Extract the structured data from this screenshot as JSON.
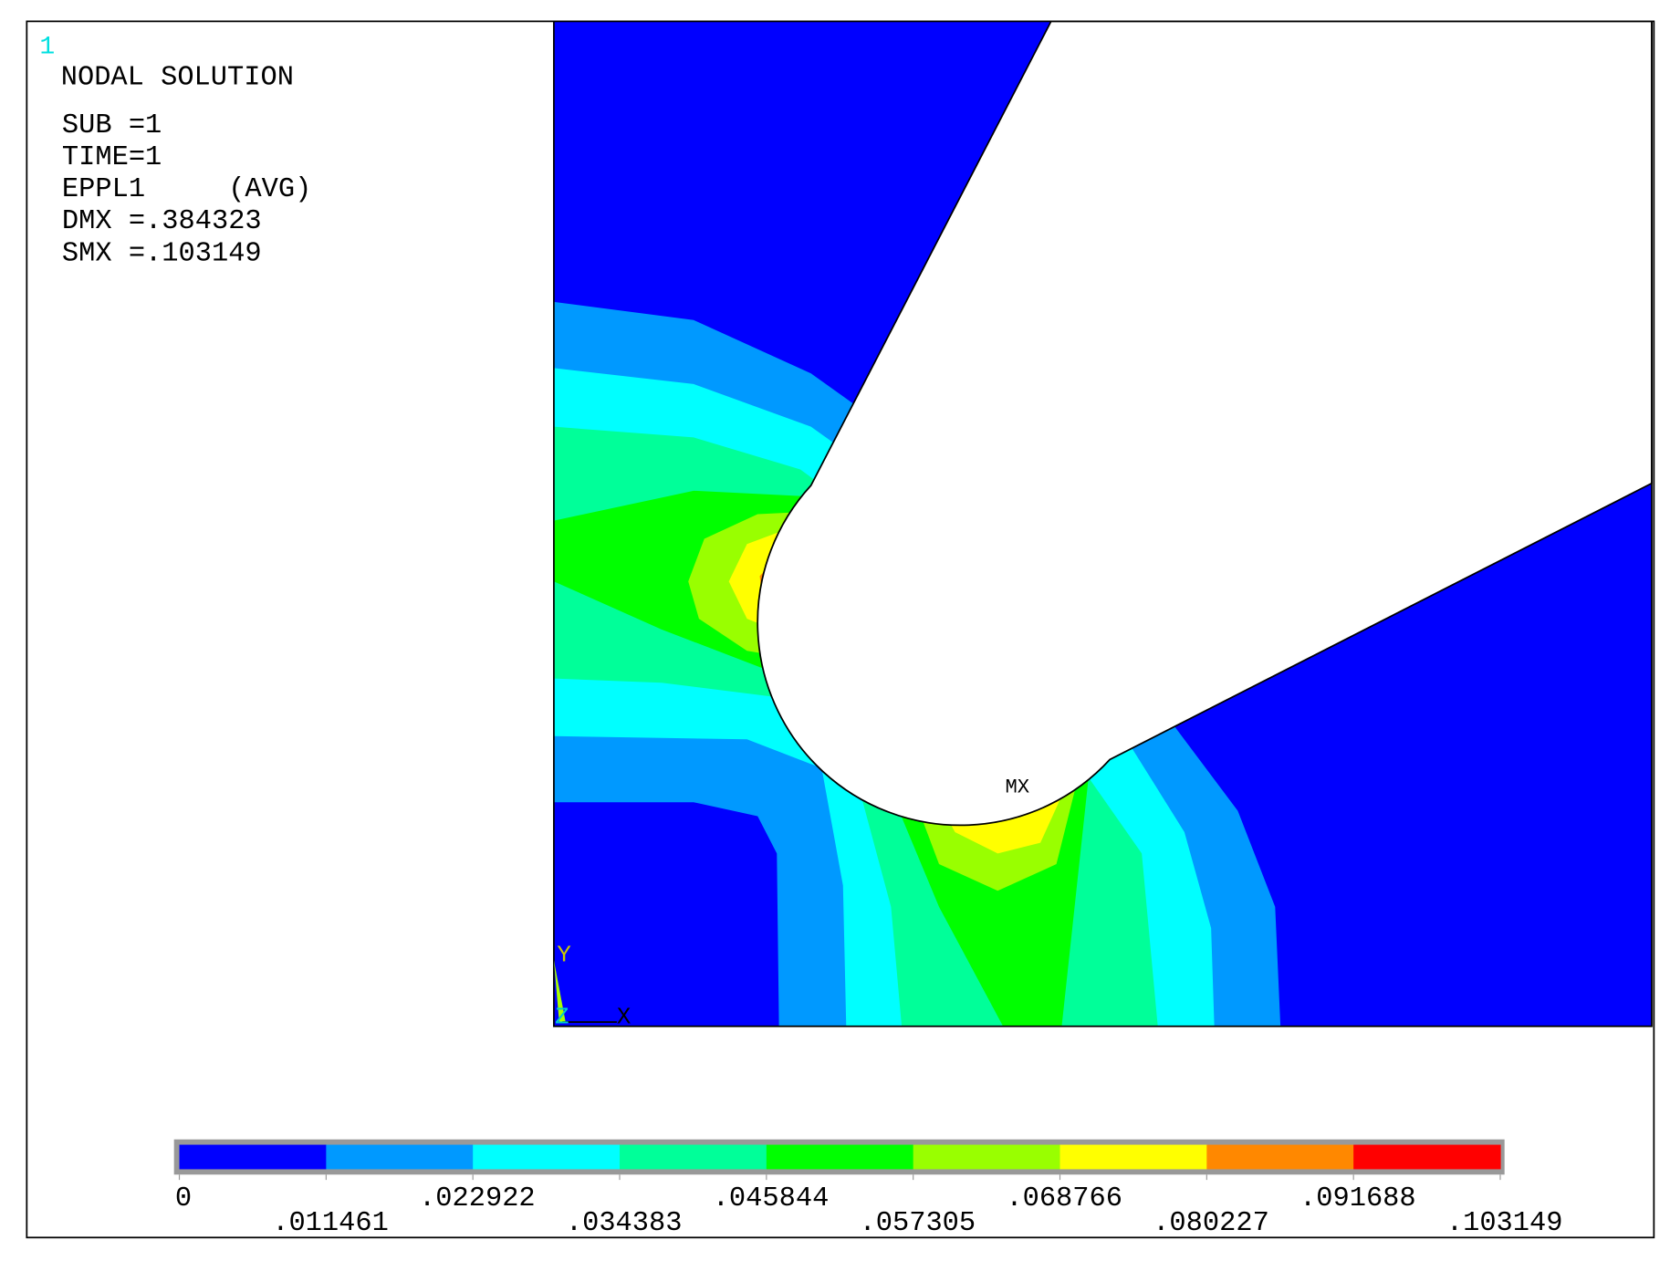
{
  "window_number": "1",
  "header": {
    "title": "NODAL SOLUTION",
    "lines": [
      "SUB =1",
      "TIME=1",
      "EPPL1     (AVG)",
      "DMX =.384323",
      "SMX =.103149"
    ]
  },
  "max_marker": "MX",
  "triad": {
    "y": "Y",
    "z": "Z",
    "x": "X"
  },
  "legend": {
    "labels": [
      "0",
      ".011461",
      ".022922",
      ".034383",
      ".045844",
      ".057305",
      ".068766",
      ".080227",
      ".091688",
      ".103149"
    ],
    "colors": [
      "#0000ff",
      "#0099ff",
      "#00ffff",
      "#00ff99",
      "#00ff00",
      "#99ff00",
      "#ffff00",
      "#ff8800",
      "#ff0000"
    ]
  }
}
